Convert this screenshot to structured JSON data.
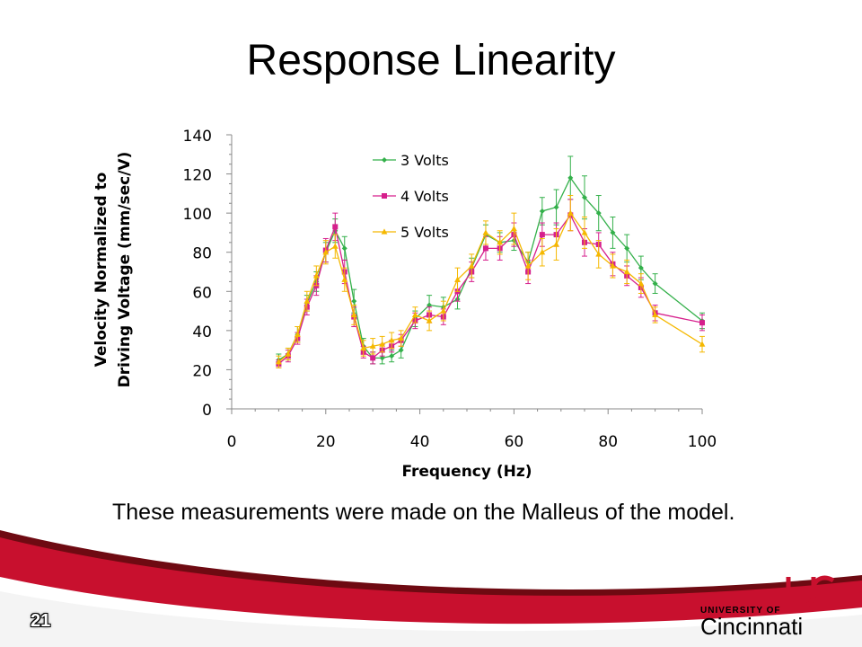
{
  "slide": {
    "title": "Response Linearity",
    "caption": "These measurements were made on the Malleus of the model.",
    "page_number": "21"
  },
  "logo": {
    "university_of": "UNIVERSITY OF",
    "name": "Cincinnati"
  },
  "colors": {
    "brand_red": "#c8102e",
    "footer_dark": "#6e0a12",
    "series_3v": "#33b04a",
    "series_4v": "#d61f8c",
    "series_5v": "#f5b800"
  },
  "chart_data": {
    "type": "line",
    "title": "",
    "xlabel": "Frequency (Hz)",
    "ylabel_lines": [
      "Velocity Normalized to",
      "Driving Voltage (mm/sec/V)"
    ],
    "xlim": [
      0,
      100
    ],
    "ylim": [
      0,
      140
    ],
    "x_ticks": [
      0,
      20,
      40,
      60,
      80,
      100
    ],
    "y_ticks": [
      0,
      20,
      40,
      60,
      80,
      100,
      120,
      140
    ],
    "grid": false,
    "legend_position": "top-left",
    "error_bars": true,
    "series": [
      {
        "name": "3 Volts",
        "color": "#33b04a",
        "marker": "diamond",
        "x": [
          10,
          12,
          14,
          16,
          18,
          20,
          22,
          24,
          26,
          28,
          30,
          32,
          34,
          36,
          39,
          42,
          45,
          48,
          51,
          54,
          57,
          60,
          63,
          66,
          69,
          72,
          75,
          78,
          81,
          84,
          87,
          90,
          100
        ],
        "y": [
          25,
          28,
          38,
          54,
          65,
          80,
          91,
          82,
          55,
          32,
          26,
          26,
          27,
          30,
          46,
          53,
          52,
          56,
          72,
          89,
          85,
          86,
          75,
          101,
          103,
          118,
          108,
          100,
          90,
          82,
          72,
          64,
          45
        ],
        "err": [
          3,
          3,
          4,
          4,
          5,
          5,
          6,
          6,
          6,
          4,
          3,
          3,
          3,
          4,
          4,
          5,
          5,
          5,
          5,
          5,
          5,
          5,
          5,
          7,
          9,
          11,
          11,
          9,
          8,
          7,
          6,
          5,
          4
        ]
      },
      {
        "name": "4 Volts",
        "color": "#d61f8c",
        "marker": "square",
        "x": [
          10,
          12,
          14,
          16,
          18,
          20,
          22,
          24,
          26,
          28,
          30,
          32,
          34,
          36,
          39,
          42,
          45,
          48,
          51,
          54,
          57,
          60,
          63,
          66,
          69,
          72,
          75,
          78,
          81,
          84,
          87,
          90,
          100
        ],
        "y": [
          23,
          27,
          36,
          52,
          63,
          81,
          93,
          70,
          47,
          29,
          26,
          30,
          32,
          35,
          45,
          48,
          47,
          60,
          70,
          82,
          82,
          89,
          70,
          89,
          89,
          99,
          85,
          84,
          74,
          68,
          62,
          49,
          44
        ],
        "err": [
          2,
          3,
          3,
          4,
          5,
          6,
          7,
          6,
          5,
          3,
          3,
          3,
          3,
          3,
          4,
          4,
          4,
          5,
          5,
          6,
          6,
          6,
          6,
          6,
          6,
          8,
          7,
          6,
          6,
          5,
          5,
          4,
          4
        ]
      },
      {
        "name": "5 Volts",
        "color": "#f5b800",
        "marker": "triangle",
        "x": [
          10,
          12,
          14,
          16,
          18,
          20,
          22,
          24,
          26,
          28,
          30,
          32,
          34,
          36,
          39,
          42,
          45,
          48,
          51,
          54,
          57,
          60,
          63,
          66,
          69,
          72,
          75,
          78,
          81,
          84,
          87,
          90,
          100
        ],
        "y": [
          24,
          28,
          38,
          55,
          68,
          80,
          83,
          66,
          48,
          31,
          32,
          33,
          35,
          36,
          48,
          45,
          50,
          66,
          73,
          90,
          85,
          92,
          73,
          80,
          84,
          100,
          90,
          79,
          73,
          70,
          64,
          48,
          33
        ],
        "err": [
          3,
          3,
          4,
          5,
          5,
          6,
          6,
          6,
          5,
          4,
          4,
          4,
          4,
          4,
          4,
          5,
          5,
          6,
          6,
          6,
          6,
          8,
          7,
          7,
          8,
          9,
          8,
          7,
          6,
          6,
          5,
          4,
          4
        ]
      }
    ]
  }
}
